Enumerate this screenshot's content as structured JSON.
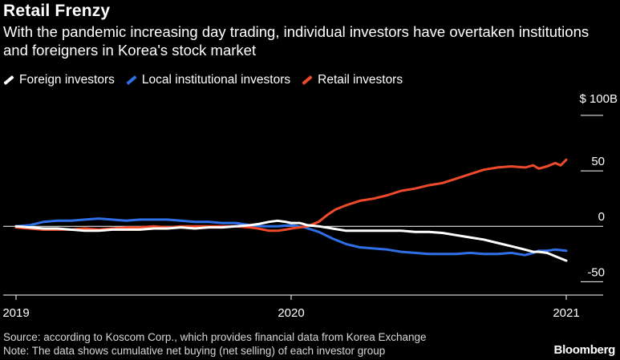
{
  "title": "Retail Frenzy",
  "subtitle": "With the pandemic increasing day trading, individual investors have overtaken institutions and foreigners in Korea's stock market",
  "legend": [
    {
      "label": "Foreign investors",
      "color": "#ffffff"
    },
    {
      "label": "Local institutional investors",
      "color": "#2f6fe8"
    },
    {
      "label": "Retail investors",
      "color": "#ef4b2b"
    }
  ],
  "footnote": {
    "source": "Source: according to Koscom Corp., which provides financial data from Korea Exchange",
    "note": "Note: The data shows cumulative net buying (net selling) of each investor group"
  },
  "brand": "Bloomberg",
  "chart_data": {
    "type": "line",
    "y_unit_label": "$ 100B",
    "ylim": [
      -62,
      105
    ],
    "y_ticks": [
      {
        "value": 100,
        "label": ""
      },
      {
        "value": 50,
        "label": "50"
      },
      {
        "value": 0,
        "label": "0"
      },
      {
        "value": -50,
        "label": "-50"
      }
    ],
    "x_ticks": [
      {
        "value": 2019.0,
        "label": "2019"
      },
      {
        "value": 2020.0,
        "label": "2020"
      },
      {
        "value": 2021.0,
        "label": "2021"
      }
    ],
    "xlim": [
      2019.0,
      2021.0
    ],
    "series": [
      {
        "name": "Foreign investors",
        "color": "#ffffff",
        "x": [
          2019.0,
          2019.05,
          2019.1,
          2019.15,
          2019.2,
          2019.25,
          2019.3,
          2019.35,
          2019.4,
          2019.45,
          2019.5,
          2019.55,
          2019.6,
          2019.65,
          2019.7,
          2019.75,
          2019.8,
          2019.85,
          2019.88,
          2019.92,
          2019.95,
          2019.98,
          2020.0,
          2020.03,
          2020.06,
          2020.1,
          2020.15,
          2020.2,
          2020.25,
          2020.3,
          2020.35,
          2020.4,
          2020.45,
          2020.5,
          2020.55,
          2020.6,
          2020.65,
          2020.7,
          2020.75,
          2020.8,
          2020.85,
          2020.88,
          2020.9,
          2020.93,
          2020.96,
          2020.98,
          2021.0
        ],
        "values": [
          0,
          -1,
          -2,
          -2,
          -3,
          -4,
          -4,
          -3,
          -3,
          -3,
          -2,
          -2,
          -1,
          -2,
          -1,
          -1,
          0,
          1,
          2,
          4,
          5,
          4,
          3,
          3,
          1,
          0,
          -2,
          -4,
          -4,
          -4,
          -4,
          -4,
          -5,
          -5,
          -6,
          -8,
          -10,
          -12,
          -15,
          -18,
          -21,
          -23,
          -23,
          -24,
          -27,
          -29,
          -31
        ]
      },
      {
        "name": "Local institutional investors",
        "color": "#2f6fe8",
        "x": [
          2019.0,
          2019.05,
          2019.1,
          2019.15,
          2019.2,
          2019.25,
          2019.3,
          2019.35,
          2019.4,
          2019.45,
          2019.5,
          2019.55,
          2019.6,
          2019.65,
          2019.7,
          2019.75,
          2019.8,
          2019.85,
          2019.9,
          2019.95,
          2020.0,
          2020.05,
          2020.1,
          2020.15,
          2020.2,
          2020.25,
          2020.3,
          2020.35,
          2020.4,
          2020.45,
          2020.5,
          2020.55,
          2020.6,
          2020.65,
          2020.7,
          2020.75,
          2020.8,
          2020.85,
          2020.88,
          2020.9,
          2020.93,
          2020.96,
          2021.0
        ],
        "values": [
          0,
          1,
          4,
          5,
          5,
          6,
          7,
          6,
          5,
          6,
          6,
          6,
          5,
          4,
          4,
          3,
          3,
          1,
          0,
          0,
          1,
          -1,
          -5,
          -11,
          -16,
          -19,
          -20,
          -21,
          -23,
          -24,
          -25,
          -25,
          -25,
          -24,
          -25,
          -25,
          -24,
          -26,
          -24,
          -22,
          -22,
          -21,
          -22
        ]
      },
      {
        "name": "Retail investors",
        "color": "#ef4b2b",
        "x": [
          2019.0,
          2019.05,
          2019.1,
          2019.15,
          2019.2,
          2019.25,
          2019.3,
          2019.35,
          2019.4,
          2019.45,
          2019.5,
          2019.55,
          2019.6,
          2019.65,
          2019.7,
          2019.75,
          2019.8,
          2019.85,
          2019.88,
          2019.92,
          2019.95,
          2019.98,
          2020.0,
          2020.03,
          2020.06,
          2020.1,
          2020.13,
          2020.16,
          2020.2,
          2020.25,
          2020.3,
          2020.35,
          2020.4,
          2020.45,
          2020.5,
          2020.55,
          2020.6,
          2020.65,
          2020.7,
          2020.75,
          2020.8,
          2020.85,
          2020.88,
          2020.9,
          2020.93,
          2020.96,
          2020.98,
          2021.0
        ],
        "values": [
          -1,
          -2,
          -3,
          -3,
          -3,
          -2,
          -3,
          -2,
          -1,
          -1,
          0,
          -1,
          0,
          0,
          0,
          0,
          0,
          -1,
          -2,
          -4,
          -4,
          -3,
          -2,
          -1,
          0,
          4,
          10,
          15,
          19,
          23,
          25,
          28,
          32,
          34,
          37,
          39,
          43,
          47,
          51,
          53,
          54,
          53,
          55,
          52,
          54,
          57,
          55,
          60
        ]
      }
    ]
  }
}
